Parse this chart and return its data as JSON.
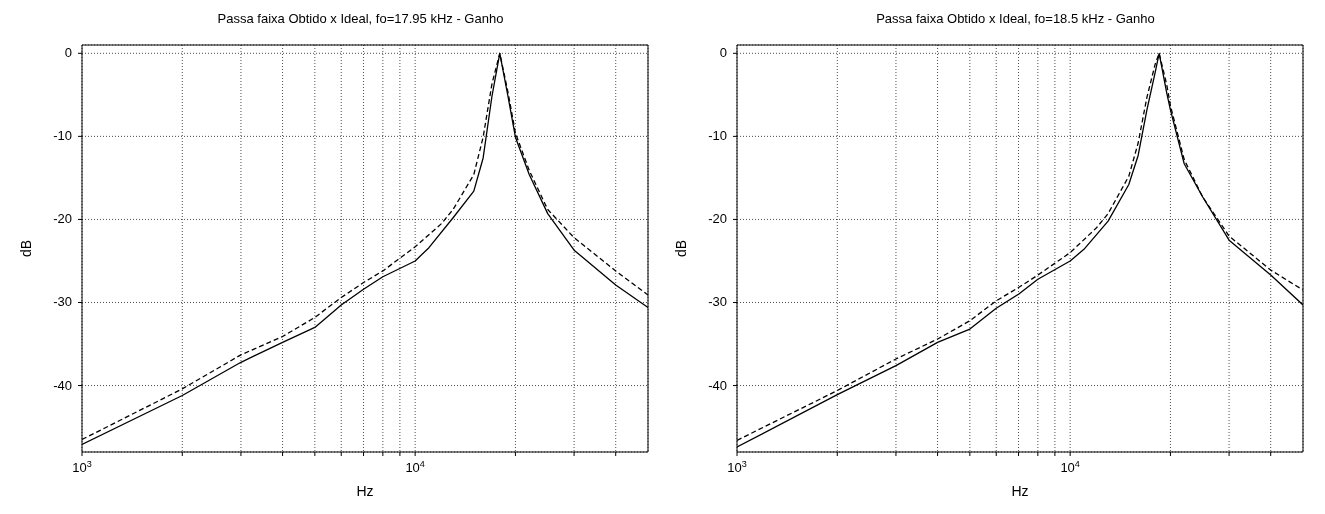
{
  "chart_data": [
    {
      "type": "line",
      "title": "Passa faixa Obtido x Ideal, fo=17.95 kHz - Ganho",
      "xlabel": "Hz",
      "ylabel": "dB",
      "log": "x",
      "grid": true,
      "marker": "none",
      "xlim": [
        1000,
        50000
      ],
      "ylim": [
        -48,
        1
      ],
      "xticks": [
        {
          "value": 1000,
          "label": "10$^{3}$"
        },
        {
          "value": 2000,
          "label": null
        },
        {
          "value": 3000,
          "label": null
        },
        {
          "value": 4000,
          "label": null
        },
        {
          "value": 5000,
          "label": null
        },
        {
          "value": 6000,
          "label": null
        },
        {
          "value": 7000,
          "label": null
        },
        {
          "value": 8000,
          "label": null
        },
        {
          "value": 9000,
          "label": null
        },
        {
          "value": 10000,
          "label": "10$^{4}$"
        },
        {
          "value": 20000,
          "label": null
        },
        {
          "value": 30000,
          "label": null
        },
        {
          "value": 40000,
          "label": null
        }
      ],
      "yticks": [
        0,
        -10,
        -20,
        -30,
        -40
      ],
      "series": [
        {
          "color": "#000000",
          "line_style": "solid",
          "x": [
            1000,
            2000,
            3000,
            4000,
            5000,
            6000,
            7000,
            8000,
            10000,
            11000,
            13000,
            15000,
            16000,
            17000,
            17950,
            19000,
            20000,
            22000,
            25000,
            30000,
            40000,
            50000
          ],
          "values": [
            -47.1,
            -41.2,
            -37.2,
            -34.8,
            -33.0,
            -30.3,
            -28.4,
            -26.9,
            -25.0,
            -23.4,
            -19.8,
            -16.6,
            -12.6,
            -5.2,
            0,
            -5.2,
            -10.1,
            -14.6,
            -19.3,
            -23.7,
            -27.9,
            -30.6
          ]
        },
        {
          "color": "#000000",
          "line_style": "dashed",
          "x": [
            1000,
            2000,
            3000,
            4000,
            5000,
            6000,
            7000,
            8000,
            10000,
            12000,
            13000,
            15000,
            16000,
            17000,
            17950,
            19000,
            20000,
            22000,
            25000,
            30000,
            40000,
            50000
          ],
          "values": [
            -46.5,
            -40.4,
            -36.3,
            -34.1,
            -31.8,
            -29.4,
            -27.6,
            -26.2,
            -23.3,
            -20.5,
            -18.8,
            -14.6,
            -10.1,
            -3.7,
            0,
            -4.7,
            -9.6,
            -14.1,
            -18.8,
            -22.2,
            -26.2,
            -29.1
          ]
        }
      ]
    },
    {
      "type": "line",
      "title": "Passa faixa Obtido x Ideal, fo=18.5 kHz - Ganho",
      "xlabel": "Hz",
      "ylabel": "dB",
      "log": "x",
      "grid": true,
      "marker": "none",
      "xlim": [
        1000,
        50000
      ],
      "ylim": [
        -48,
        1
      ],
      "xticks": [
        {
          "value": 1000,
          "label": "10$^{3}$"
        },
        {
          "value": 2000,
          "label": null
        },
        {
          "value": 3000,
          "label": null
        },
        {
          "value": 4000,
          "label": null
        },
        {
          "value": 5000,
          "label": null
        },
        {
          "value": 6000,
          "label": null
        },
        {
          "value": 7000,
          "label": null
        },
        {
          "value": 8000,
          "label": null
        },
        {
          "value": 9000,
          "label": null
        },
        {
          "value": 10000,
          "label": "10$^{4}$"
        },
        {
          "value": 20000,
          "label": null
        },
        {
          "value": 30000,
          "label": null
        },
        {
          "value": 40000,
          "label": null
        }
      ],
      "yticks": [
        0,
        -10,
        -20,
        -30,
        -40
      ],
      "series": [
        {
          "color": "#000000",
          "line_style": "solid",
          "x": [
            1000,
            2000,
            3000,
            4000,
            5000,
            6000,
            7000,
            8000,
            10000,
            11000,
            13000,
            15000,
            16000,
            17000,
            18000,
            18500,
            19500,
            20000,
            22000,
            25000,
            30000,
            40000,
            50000
          ],
          "values": [
            -47.4,
            -41.1,
            -37.6,
            -34.8,
            -33.2,
            -30.7,
            -29.0,
            -27.2,
            -25.0,
            -23.6,
            -20.2,
            -15.8,
            -12.3,
            -6.8,
            -2.3,
            0,
            -4.8,
            -6.8,
            -13.3,
            -17.3,
            -22.5,
            -26.7,
            -30.3
          ]
        },
        {
          "color": "#000000",
          "line_style": "dashed",
          "x": [
            1000,
            2000,
            3000,
            4000,
            5000,
            6000,
            7000,
            8000,
            10000,
            12000,
            13000,
            15000,
            16000,
            17000,
            18000,
            18500,
            19500,
            20000,
            22000,
            25000,
            30000,
            40000,
            50000
          ],
          "values": [
            -46.6,
            -40.6,
            -36.8,
            -34.4,
            -32.2,
            -29.8,
            -28.2,
            -26.7,
            -24.0,
            -21.0,
            -19.3,
            -14.8,
            -10.8,
            -5.3,
            -1.3,
            0,
            -3.8,
            -6.3,
            -12.8,
            -17.3,
            -22.0,
            -26.1,
            -28.5
          ]
        }
      ]
    }
  ]
}
